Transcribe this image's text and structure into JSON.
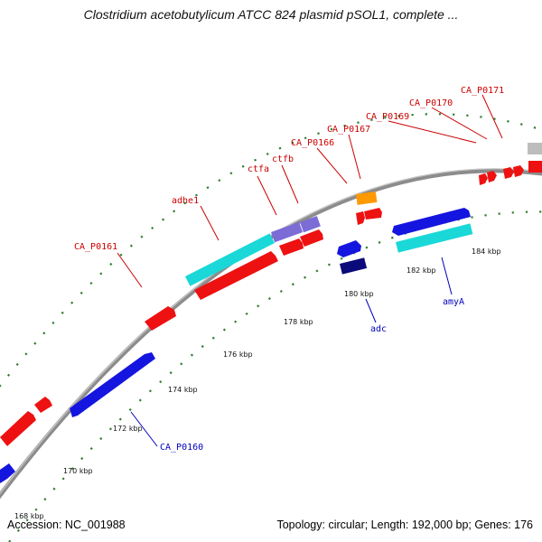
{
  "title": "Clostridium acetobutylicum ATCC 824 plasmid pSOL1, complete ...",
  "accession": "Accession: NC_001988",
  "summary": "Topology: circular; Length: 192,000 bp; Genes: 176",
  "colors": {
    "backbone": "#8c8c8c",
    "tick": "#2e7d2e",
    "fwd_label": "#cc0000",
    "rev_label": "#0000bb",
    "red": "#ee1111",
    "cyan": "#1ad8d8",
    "purple": "#7b6cd6",
    "blue": "#1515e0",
    "navy": "#0a0a7a",
    "orange": "#ff9900",
    "gray": "#bdbdbd"
  },
  "scale_labels": [
    "168 kbp",
    "170 kbp",
    "172 kbp",
    "174 kbp",
    "176 kbp",
    "178 kbp",
    "180 kbp",
    "182 kbp",
    "184 kbp"
  ],
  "features": [
    {
      "name": "",
      "color": "red"
    },
    {
      "name": "",
      "color": "red"
    },
    {
      "name": "CA_P0161",
      "color": "red"
    },
    {
      "name": "adhe1",
      "color": "cyan"
    },
    {
      "name": "",
      "color": "red"
    },
    {
      "name": "ctfa",
      "color": "purple"
    },
    {
      "name": "ctfb",
      "color": "purple"
    },
    {
      "name": "",
      "color": "red"
    },
    {
      "name": "",
      "color": "red"
    },
    {
      "name": "CA_P0166",
      "color": "orange"
    },
    {
      "name": "CA_P0167",
      "color": "red"
    },
    {
      "name": "CA_P0169",
      "color": "red"
    },
    {
      "name": "CA_P0170",
      "color": "red"
    },
    {
      "name": "CA_P0171",
      "color": "red"
    },
    {
      "name": "",
      "color": "gray"
    },
    {
      "name": "",
      "color": "blue"
    },
    {
      "name": "CA_P0160",
      "color": "blue"
    },
    {
      "name": "adc",
      "color": "navy"
    },
    {
      "name": "",
      "color": "blue"
    },
    {
      "name": "",
      "color": "blue"
    },
    {
      "name": "amyA",
      "color": "cyan"
    }
  ],
  "labels": {
    "ca_p0161": "CA_P0161",
    "adhe1": "adhe1",
    "ctfa": "ctfa",
    "ctfb": "ctfb",
    "ca_p0166": "CA_P0166",
    "ca_p0167": "CA_P0167",
    "ca_p0169": "CA_P0169",
    "ca_p0170": "CA_P0170",
    "ca_p0171": "CA_P0171",
    "ca_p0160": "CA_P0160",
    "adc": "adc",
    "amya": "amyA"
  }
}
